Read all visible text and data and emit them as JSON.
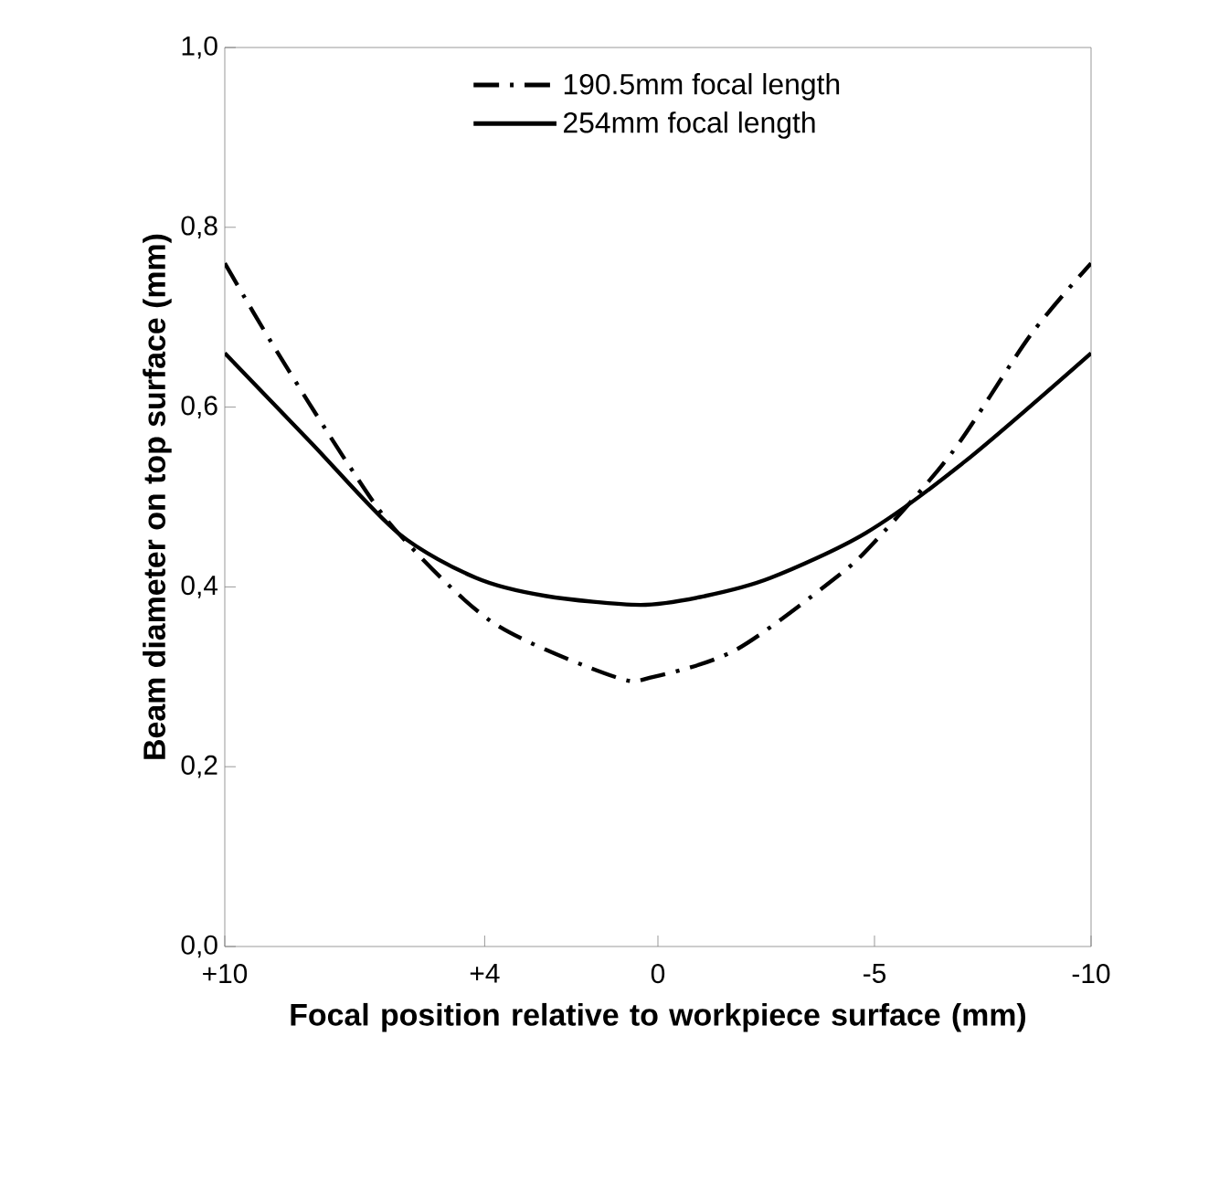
{
  "chart_data": {
    "type": "line",
    "xlabel": "Focal position relative to  workpiece surface (mm)",
    "ylabel": "Beam diameter on top surface (mm)",
    "xlim": [
      10,
      -10
    ],
    "xticks": [
      {
        "value": 10,
        "label": "+10"
      },
      {
        "value": 4,
        "label": "+4"
      },
      0,
      -5,
      -10
    ],
    "ylim": [
      0,
      1
    ],
    "yticks": [
      {
        "value": 0,
        "label": "0,0"
      },
      {
        "value": 0.2,
        "label": "0,2"
      },
      {
        "value": 0.4,
        "label": "0,4"
      },
      {
        "value": 0.6,
        "label": "0,6"
      },
      {
        "value": 0.8,
        "label": "0,8"
      },
      {
        "value": 1,
        "label": "1,0"
      }
    ],
    "legend": "top",
    "grid": false,
    "series": [
      {
        "name": "190.5mm focal length",
        "color": "#000000",
        "line_style": "dashdot",
        "x": [
          10,
          8.9,
          7.2,
          6.0,
          3.8,
          1.0,
          0.1,
          -1.8,
          -4.1,
          -5.0,
          -6.8,
          -8.6,
          -10
        ],
        "values": [
          0.76,
          0.67,
          0.54,
          0.46,
          0.36,
          0.3,
          0.3,
          0.33,
          0.41,
          0.45,
          0.55,
          0.68,
          0.76
        ]
      },
      {
        "name": "254mm focal length",
        "color": "#000000",
        "line_style": "solid",
        "x": [
          10,
          8.0,
          6.0,
          4.2,
          2.6,
          0.4,
          -1.1,
          -2.6,
          -4.8,
          -7.1,
          -10
        ],
        "values": [
          0.66,
          0.56,
          0.46,
          0.41,
          0.39,
          0.38,
          0.39,
          0.41,
          0.46,
          0.54,
          0.66
        ]
      }
    ]
  }
}
